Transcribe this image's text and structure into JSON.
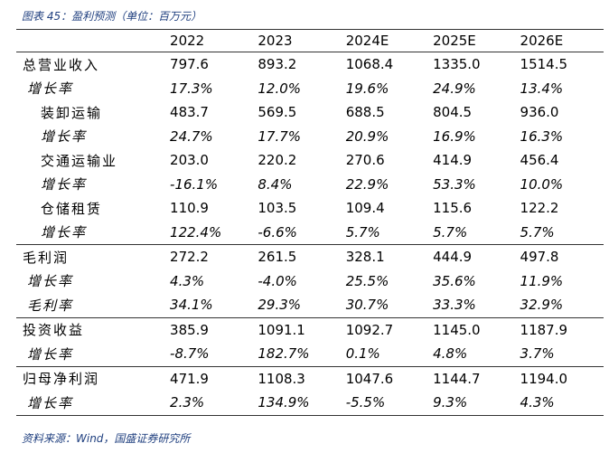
{
  "caption": "图表 45：盈利预测（单位：百万元）",
  "table": {
    "header": [
      "2022",
      "2023",
      "2024E",
      "2025E",
      "2026E"
    ],
    "rows": [
      [
        "总营业收入",
        "797.6",
        "893.2",
        "1068.4",
        "1335.0",
        "1514.5"
      ],
      [
        "增长率",
        "17.3%",
        "12.0%",
        "19.6%",
        "24.9%",
        "13.4%"
      ],
      [
        "装卸运输",
        "483.7",
        "569.5",
        "688.5",
        "804.5",
        "936.0"
      ],
      [
        "增长率",
        "24.7%",
        "17.7%",
        "20.9%",
        "16.9%",
        "16.3%"
      ],
      [
        "交通运输业",
        "203.0",
        "220.2",
        "270.6",
        "414.9",
        "456.4"
      ],
      [
        "增长率",
        "-16.1%",
        "8.4%",
        "22.9%",
        "53.3%",
        "10.0%"
      ],
      [
        "仓储租赁",
        "110.9",
        "103.5",
        "109.4",
        "115.6",
        "122.2"
      ],
      [
        "增长率",
        "122.4%",
        "-6.6%",
        "5.7%",
        "5.7%",
        "5.7%"
      ],
      [
        "毛利润",
        "272.2",
        "261.5",
        "328.1",
        "444.9",
        "497.8"
      ],
      [
        "增长率",
        "4.3%",
        "-4.0%",
        "25.5%",
        "35.6%",
        "11.9%"
      ],
      [
        "毛利率",
        "34.1%",
        "29.3%",
        "30.7%",
        "33.3%",
        "32.9%"
      ],
      [
        "投资收益",
        "385.9",
        "1091.1",
        "1092.7",
        "1145.0",
        "1187.9"
      ],
      [
        "增长率",
        "-8.7%",
        "182.7%",
        "0.1%",
        "4.8%",
        "3.7%"
      ],
      [
        "归母净利润",
        "471.9",
        "1108.3",
        "1047.6",
        "1144.7",
        "1194.0"
      ],
      [
        "增长率",
        "2.3%",
        "134.9%",
        "-5.5%",
        "9.3%",
        "4.3%"
      ]
    ]
  },
  "source": "资料来源：Wind，国盛证券研究所"
}
